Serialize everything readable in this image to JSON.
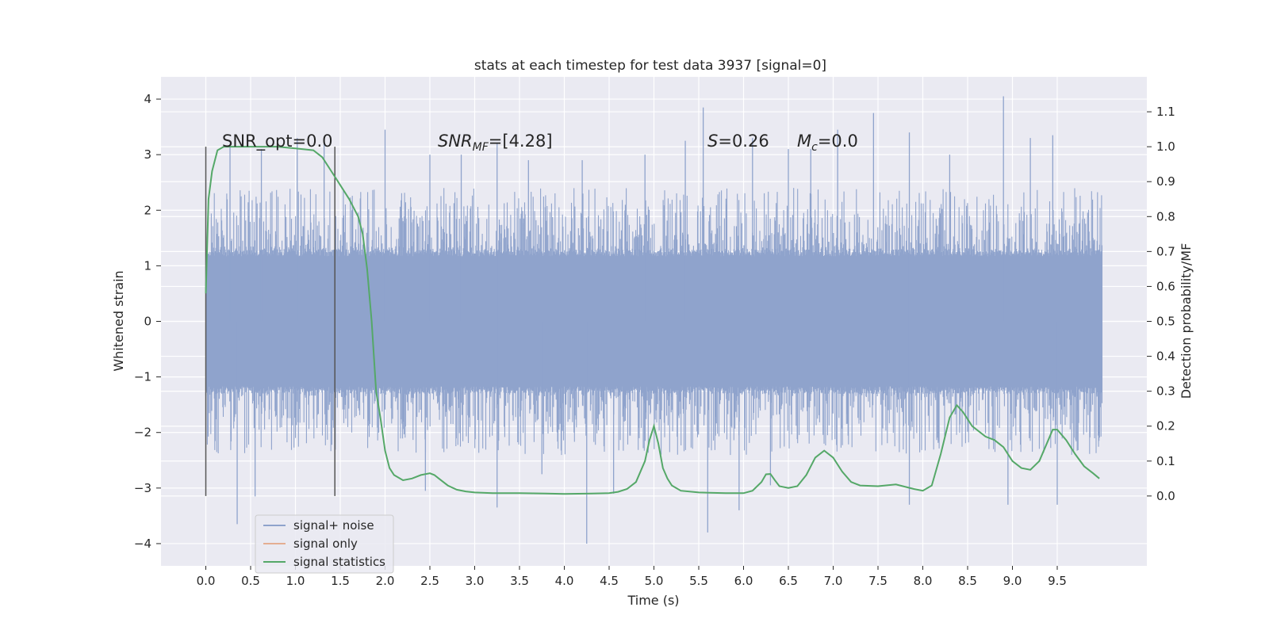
{
  "chart_data": {
    "type": "line",
    "title": "stats at each timestep for test data 3937 [signal=0]",
    "xlabel": "Time (s)",
    "ylabel": "Whitened strain",
    "ylabel_right": "Detection probability/MF",
    "xlim": [
      -0.5,
      10.5
    ],
    "ylim": [
      -4.4,
      4.4
    ],
    "ylim_right": [
      -0.2,
      1.2
    ],
    "x_ticks": [
      0.0,
      0.5,
      1.0,
      1.5,
      2.0,
      2.5,
      3.0,
      3.5,
      4.0,
      4.5,
      5.0,
      5.5,
      6.0,
      6.5,
      7.0,
      7.5,
      8.0,
      8.5,
      9.0,
      9.5
    ],
    "x_tick_labels": [
      "0.0",
      "0.5",
      "1.0",
      "1.5",
      "2.0",
      "2.5",
      "3.0",
      "3.5",
      "4.0",
      "4.5",
      "5.0",
      "5.5",
      "6.0",
      "6.5",
      "7.0",
      "7.5",
      "8.0",
      "8.5",
      "9.0",
      "9.5"
    ],
    "y_ticks": [
      -4,
      -3,
      -2,
      -1,
      0,
      1,
      2,
      3,
      4
    ],
    "y_tick_labels": [
      "−4",
      "−3",
      "−2",
      "−1",
      "0",
      "1",
      "2",
      "3",
      "4"
    ],
    "y_right_ticks": [
      0.0,
      0.1,
      0.2,
      0.3,
      0.4,
      0.5,
      0.6,
      0.7,
      0.8,
      0.9,
      1.0,
      1.1
    ],
    "y_right_tick_labels": [
      "0.0",
      "0.1",
      "0.2",
      "0.3",
      "0.4",
      "0.5",
      "0.6",
      "0.7",
      "0.8",
      "0.9",
      "1.0",
      "1.1"
    ],
    "grid": true,
    "legend_position": "lower-left",
    "annotations": {
      "snr_opt": "SNR_opt=0.0",
      "snr_mf_main": "SNR",
      "snr_mf_sub": "MF",
      "snr_mf_value": "=[4.28]",
      "s_main": "S",
      "s_value": "=0.26",
      "mc_main": "M",
      "mc_sub": "c",
      "mc_value": "=0.0"
    },
    "vertical_lines": [
      0.0,
      1.44
    ],
    "series": [
      {
        "name": "signal+ noise",
        "color": "#8fa3cc",
        "kind": "noise",
        "x_range": [
          0.0,
          10.0
        ],
        "envelope_upper": 1.3,
        "envelope_lower": -1.3,
        "peaks": [
          {
            "x": 0.27,
            "y": 3.2
          },
          {
            "x": 0.62,
            "y": 3.1
          },
          {
            "x": 1.02,
            "y": 3.3
          },
          {
            "x": 1.32,
            "y": 3.2
          },
          {
            "x": 2.0,
            "y": 3.45
          },
          {
            "x": 2.5,
            "y": 3.0
          },
          {
            "x": 2.85,
            "y": 3.0
          },
          {
            "x": 3.25,
            "y": 3.2
          },
          {
            "x": 3.6,
            "y": 2.9
          },
          {
            "x": 4.2,
            "y": 2.9
          },
          {
            "x": 4.9,
            "y": 3.0
          },
          {
            "x": 5.35,
            "y": 3.25
          },
          {
            "x": 5.55,
            "y": 3.85
          },
          {
            "x": 6.1,
            "y": 3.3
          },
          {
            "x": 6.5,
            "y": 3.1
          },
          {
            "x": 6.75,
            "y": 3.1
          },
          {
            "x": 7.05,
            "y": 3.45
          },
          {
            "x": 7.45,
            "y": 3.75
          },
          {
            "x": 7.85,
            "y": 3.4
          },
          {
            "x": 8.3,
            "y": 3.0
          },
          {
            "x": 8.9,
            "y": 4.05
          },
          {
            "x": 9.2,
            "y": 3.3
          },
          {
            "x": 9.45,
            "y": 3.35
          }
        ],
        "troughs": [
          {
            "x": 0.35,
            "y": -3.65
          },
          {
            "x": 0.55,
            "y": -3.15
          },
          {
            "x": 2.45,
            "y": -3.05
          },
          {
            "x": 3.25,
            "y": -3.35
          },
          {
            "x": 3.75,
            "y": -2.75
          },
          {
            "x": 4.25,
            "y": -4.0
          },
          {
            "x": 4.55,
            "y": -3.1
          },
          {
            "x": 5.6,
            "y": -3.8
          },
          {
            "x": 5.95,
            "y": -3.4
          },
          {
            "x": 6.3,
            "y": -2.95
          },
          {
            "x": 7.85,
            "y": -3.3
          },
          {
            "x": 8.95,
            "y": -3.3
          },
          {
            "x": 9.5,
            "y": -3.3
          }
        ]
      },
      {
        "name": "signal only",
        "color": "#dd8452",
        "kind": "line",
        "x": [],
        "y": []
      },
      {
        "name": "signal statistics",
        "color": "#55a868",
        "kind": "line",
        "axis": "right",
        "x": [
          0.0,
          0.03,
          0.07,
          0.13,
          0.2,
          0.3,
          0.5,
          0.8,
          1.0,
          1.2,
          1.3,
          1.4,
          1.5,
          1.6,
          1.7,
          1.75,
          1.8,
          1.85,
          1.9,
          1.95,
          2.0,
          2.05,
          2.1,
          2.2,
          2.3,
          2.4,
          2.5,
          2.55,
          2.6,
          2.7,
          2.8,
          2.9,
          3.0,
          3.2,
          3.5,
          3.8,
          4.0,
          4.3,
          4.5,
          4.6,
          4.7,
          4.8,
          4.9,
          4.95,
          5.0,
          5.05,
          5.1,
          5.15,
          5.2,
          5.3,
          5.5,
          5.8,
          6.0,
          6.1,
          6.2,
          6.25,
          6.3,
          6.35,
          6.4,
          6.5,
          6.6,
          6.7,
          6.8,
          6.9,
          7.0,
          7.1,
          7.2,
          7.3,
          7.5,
          7.7,
          7.9,
          8.0,
          8.1,
          8.2,
          8.3,
          8.38,
          8.45,
          8.55,
          8.7,
          8.8,
          8.9,
          9.0,
          9.1,
          9.2,
          9.3,
          9.4,
          9.45,
          9.5,
          9.6,
          9.7,
          9.8,
          9.9,
          9.97
        ],
        "y": [
          0.58,
          0.85,
          0.93,
          0.99,
          1.0,
          1.0,
          1.0,
          1.0,
          0.995,
          0.99,
          0.97,
          0.93,
          0.89,
          0.85,
          0.8,
          0.75,
          0.65,
          0.5,
          0.3,
          0.22,
          0.13,
          0.08,
          0.06,
          0.045,
          0.05,
          0.06,
          0.065,
          0.06,
          0.05,
          0.03,
          0.018,
          0.013,
          0.01,
          0.008,
          0.008,
          0.007,
          0.006,
          0.007,
          0.008,
          0.012,
          0.02,
          0.04,
          0.1,
          0.16,
          0.2,
          0.15,
          0.08,
          0.05,
          0.03,
          0.015,
          0.01,
          0.008,
          0.008,
          0.015,
          0.04,
          0.062,
          0.063,
          0.045,
          0.028,
          0.023,
          0.028,
          0.06,
          0.11,
          0.13,
          0.11,
          0.07,
          0.04,
          0.03,
          0.028,
          0.033,
          0.02,
          0.015,
          0.03,
          0.12,
          0.225,
          0.26,
          0.24,
          0.2,
          0.17,
          0.16,
          0.14,
          0.1,
          0.08,
          0.075,
          0.1,
          0.16,
          0.19,
          0.19,
          0.16,
          0.12,
          0.085,
          0.065,
          0.05
        ]
      }
    ]
  }
}
